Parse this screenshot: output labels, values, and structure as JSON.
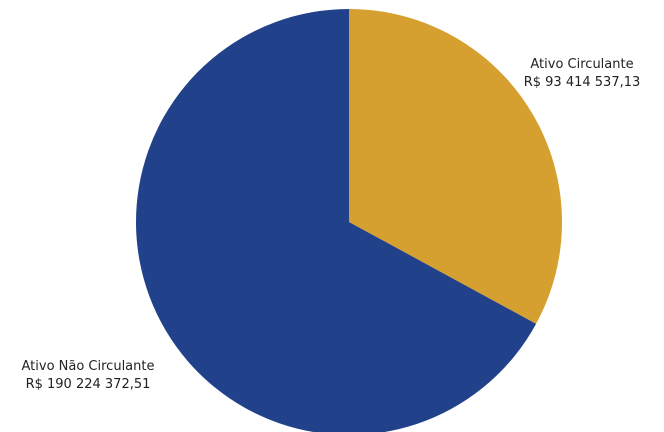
{
  "chart_data": {
    "type": "pie",
    "slices": [
      {
        "label": "Ativo Circulante",
        "value_text": "R$ 93 414 537,13",
        "value": 93414537.13,
        "color": "#D6A030"
      },
      {
        "label": "Ativo Não Circulante",
        "value_text": "R$ 190 224 372,51",
        "value": 190224372.51,
        "color": "#21418A"
      }
    ]
  }
}
